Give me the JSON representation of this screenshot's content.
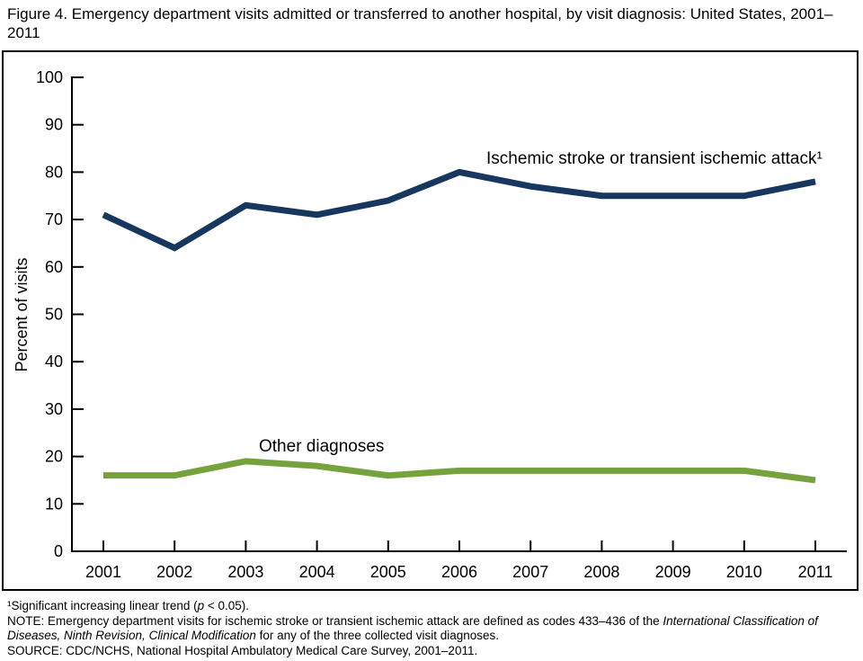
{
  "figure": {
    "title": "Figure 4. Emergency department visits admitted or transferred to another hospital, by visit diagnosis: United States, 2001–2011"
  },
  "chart_data": {
    "type": "line",
    "title": "Figure 4. Emergency department visits admitted or transferred to another hospital, by visit diagnosis: United States, 2001–2011",
    "xlabel": "",
    "ylabel": "Percent of visits",
    "ylim": [
      0,
      100
    ],
    "ytick_step": 10,
    "grid": false,
    "legend_position": "inline-annotations",
    "categories": [
      "2001",
      "2002",
      "2003",
      "2004",
      "2005",
      "2006",
      "2007",
      "2008",
      "2009",
      "2010",
      "2011"
    ],
    "series": [
      {
        "name": "Ischemic stroke or transient ischemic attack¹",
        "color": "#17375E",
        "values": [
          71,
          64,
          73,
          71,
          74,
          80,
          77,
          75,
          75,
          75,
          78
        ],
        "label_x": 539,
        "label_y": 126
      },
      {
        "name": "Other diagnoses",
        "color": "#76A23E",
        "values": [
          16,
          16,
          19,
          18,
          16,
          17,
          17,
          17,
          17,
          17,
          15
        ],
        "label_x": 286,
        "label_y": 446
      }
    ]
  },
  "footnotes": {
    "trend_pre": "¹Significant increasing linear trend (",
    "trend_italic": "p",
    "trend_post": " < 0.05).",
    "note_pre": "NOTE: Emergency department visits for ischemic stroke or transient ischemic attack are defined as codes 433–436 of the ",
    "note_italic": "International Classification of Diseases, Ninth Revision, Clinical Modification",
    "note_post": " for any of the three collected visit diagnoses.",
    "source": "SOURCE: CDC/NCHS, National Hospital Ambulatory Medical Care Survey, 2001–2011."
  }
}
